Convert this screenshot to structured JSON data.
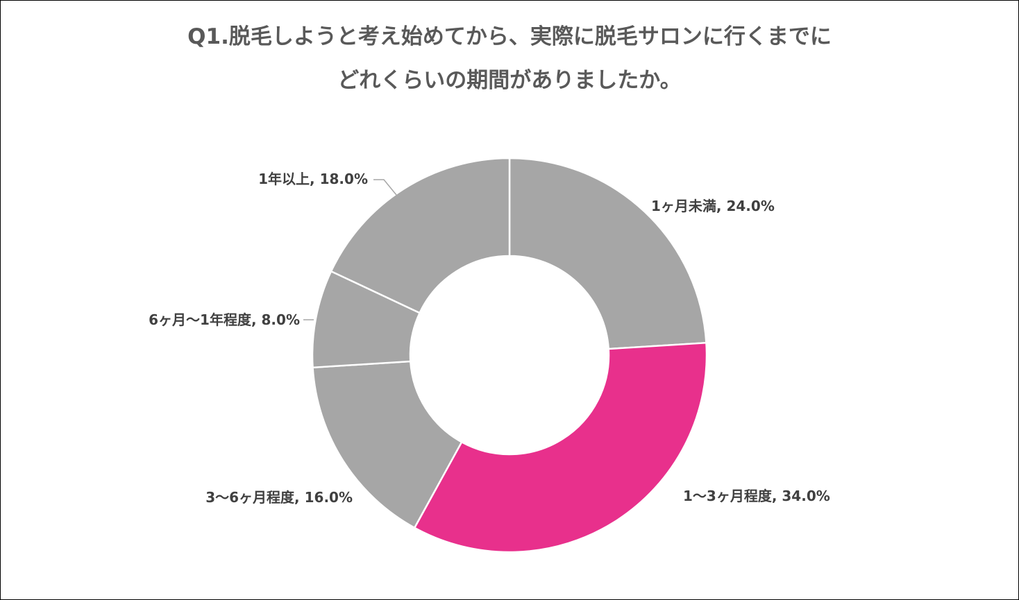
{
  "chart_data": {
    "type": "pie",
    "variant": "donut",
    "title_lines": [
      "Q1.脱毛しようと考え始めてから、実際に脱毛サロンに行くまでに",
      "どれくらいの期間がありましたか。"
    ],
    "slices": [
      {
        "label": "1ヶ月未満",
        "value": 24.0,
        "display": "1ヶ月未満, 24.0%",
        "color": "#a6a6a6"
      },
      {
        "label": "1〜3ヶ月程度",
        "value": 34.0,
        "display": "1〜3ヶ月程度, 34.0%",
        "color": "#e8308c"
      },
      {
        "label": "3〜6ヶ月程度",
        "value": 16.0,
        "display": "3〜6ヶ月程度, 16.0%",
        "color": "#a6a6a6"
      },
      {
        "label": "6ヶ月〜1年程度",
        "value": 8.0,
        "display": "6ヶ月〜1年程度, 8.0%",
        "color": "#a6a6a6"
      },
      {
        "label": "1年以上",
        "value": 18.0,
        "display": "1年以上, 18.0%",
        "color": "#a6a6a6"
      }
    ],
    "unit": "%",
    "legend": "none",
    "start": "12 o'clock, clockwise"
  }
}
